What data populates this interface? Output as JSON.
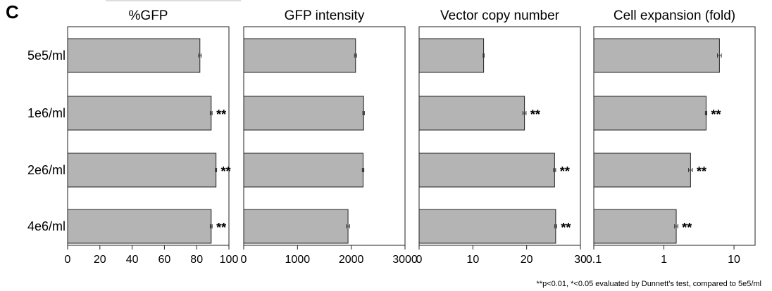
{
  "panel_label": "C",
  "footnote": "**p<0.01, *<0.05 evaluated by Dunnett's test, compared to 5e5/ml",
  "bar_color": "#b4b4b4",
  "chart_data": [
    {
      "type": "bar",
      "orientation": "horizontal",
      "title": "%GFP",
      "categories": [
        "5e5/ml",
        "1e6/ml",
        "2e6/ml",
        "4e6/ml"
      ],
      "values": [
        82,
        89,
        92,
        89
      ],
      "errors": [
        0.8,
        0.6,
        0.4,
        0.6
      ],
      "significance": [
        "",
        "**",
        "**",
        "**"
      ],
      "xlim": [
        0,
        100
      ],
      "ticks": [
        0,
        20,
        40,
        60,
        80,
        100
      ],
      "scale": "linear",
      "grid": false
    },
    {
      "type": "bar",
      "orientation": "horizontal",
      "title": "GFP intensity",
      "categories": [
        "5e5/ml",
        "1e6/ml",
        "2e6/ml",
        "4e6/ml"
      ],
      "values": [
        2080,
        2230,
        2220,
        1940
      ],
      "errors": [
        20,
        15,
        15,
        30
      ],
      "significance": [
        "",
        "",
        "",
        ""
      ],
      "xlim": [
        0,
        3000
      ],
      "ticks": [
        0,
        1000,
        2000,
        3000
      ],
      "scale": "linear",
      "grid": false
    },
    {
      "type": "bar",
      "orientation": "horizontal",
      "title": "Vector copy number",
      "categories": [
        "5e5/ml",
        "1e6/ml",
        "2e6/ml",
        "4e6/ml"
      ],
      "values": [
        12,
        19.6,
        25.2,
        25.4
      ],
      "errors": [
        0.1,
        0.3,
        0.2,
        0.2
      ],
      "significance": [
        "",
        "**",
        "**",
        "**"
      ],
      "xlim": [
        0,
        30
      ],
      "ticks": [
        0,
        10,
        20,
        30
      ],
      "scale": "linear",
      "grid": false
    },
    {
      "type": "bar",
      "orientation": "horizontal",
      "title": "Cell expansion (fold)",
      "categories": [
        "5e5/ml",
        "1e6/ml",
        "2e6/ml",
        "4e6/ml"
      ],
      "values": [
        6.2,
        4.0,
        2.4,
        1.5
      ],
      "errors": [
        0.4,
        0.1,
        0.15,
        0.08
      ],
      "significance": [
        "",
        "**",
        "**",
        "**"
      ],
      "xlim": [
        0.1,
        20
      ],
      "ticks": [
        0.1,
        1,
        10
      ],
      "tick_labels": [
        "0.1",
        "1",
        "10"
      ],
      "scale": "log",
      "grid": false
    }
  ]
}
